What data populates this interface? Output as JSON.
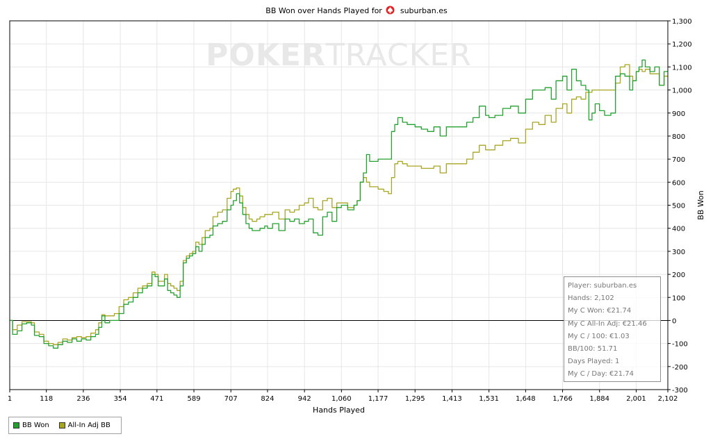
{
  "title": {
    "text": "BB Won over Hands Played for",
    "player": "suburban.es",
    "icon": "pokerstars-spade-icon"
  },
  "colors": {
    "bb_won": "#22a12e",
    "allin_adj": "#a8a520",
    "zero_line": "#000000",
    "grid": "#e6e6e6",
    "watermark": "#e8e8e8"
  },
  "watermark": {
    "left": "POKER",
    "right": "TRACKER"
  },
  "stats": {
    "player": "Player: suburban.es",
    "hands": "Hands: 2,102",
    "won": "My C Won: €21.74",
    "allin_adj": "My C All-In Adj: €21.46",
    "per100": "My C / 100: €1.03",
    "bb100": "BB/100: 51.71",
    "days": "Days Played: 1",
    "per_day": "My C / Day: €21.74"
  },
  "chart_data": {
    "type": "line",
    "title": "BB Won over Hands Played for suburban.es",
    "xlabel": "Hands Played",
    "ylabel": "BB Won",
    "xlim": [
      1,
      2102
    ],
    "ylim": [
      -300,
      1300
    ],
    "x_ticks": [
      1,
      118,
      236,
      354,
      471,
      589,
      707,
      824,
      942,
      1060,
      1177,
      1295,
      1413,
      1531,
      1648,
      1766,
      1884,
      2001,
      2102
    ],
    "x_tick_labels": [
      "1",
      "118",
      "236",
      "354",
      "471",
      "589",
      "707",
      "824",
      "942",
      "1,060",
      "1,177",
      "1,295",
      "1,413",
      "1,531",
      "1,648",
      "1,766",
      "1,884",
      "2,001",
      "2,102"
    ],
    "y_ticks": [
      -300,
      -200,
      -100,
      0,
      100,
      200,
      300,
      400,
      500,
      600,
      700,
      800,
      900,
      1000,
      1100,
      1200,
      1300
    ],
    "y_tick_labels": [
      "-300",
      "-200",
      "-100",
      "0",
      "100",
      "200",
      "300",
      "400",
      "500",
      "600",
      "700",
      "800",
      "900",
      "1,000",
      "1,100",
      "1,200",
      "1,300"
    ],
    "grid": true,
    "legend_position": "bottom-left",
    "series": [
      {
        "name": "BB Won",
        "points": [
          [
            1,
            0
          ],
          [
            10,
            -60
          ],
          [
            25,
            -45
          ],
          [
            40,
            -15
          ],
          [
            55,
            -10
          ],
          [
            70,
            -20
          ],
          [
            80,
            -65
          ],
          [
            95,
            -70
          ],
          [
            110,
            -100
          ],
          [
            125,
            -110
          ],
          [
            140,
            -120
          ],
          [
            155,
            -105
          ],
          [
            170,
            -90
          ],
          [
            185,
            -95
          ],
          [
            200,
            -80
          ],
          [
            215,
            -90
          ],
          [
            230,
            -80
          ],
          [
            245,
            -85
          ],
          [
            260,
            -70
          ],
          [
            275,
            -60
          ],
          [
            285,
            -30
          ],
          [
            295,
            20
          ],
          [
            305,
            -10
          ],
          [
            320,
            0
          ],
          [
            335,
            0
          ],
          [
            350,
            30
          ],
          [
            365,
            70
          ],
          [
            380,
            80
          ],
          [
            395,
            100
          ],
          [
            410,
            120
          ],
          [
            425,
            140
          ],
          [
            440,
            150
          ],
          [
            455,
            200
          ],
          [
            465,
            190
          ],
          [
            475,
            150
          ],
          [
            485,
            150
          ],
          [
            495,
            180
          ],
          [
            505,
            130
          ],
          [
            515,
            120
          ],
          [
            525,
            110
          ],
          [
            535,
            100
          ],
          [
            545,
            150
          ],
          [
            555,
            250
          ],
          [
            565,
            270
          ],
          [
            575,
            280
          ],
          [
            585,
            290
          ],
          [
            595,
            320
          ],
          [
            605,
            300
          ],
          [
            615,
            330
          ],
          [
            625,
            360
          ],
          [
            640,
            370
          ],
          [
            650,
            410
          ],
          [
            665,
            420
          ],
          [
            680,
            430
          ],
          [
            695,
            480
          ],
          [
            707,
            500
          ],
          [
            715,
            520
          ],
          [
            725,
            550
          ],
          [
            735,
            510
          ],
          [
            745,
            460
          ],
          [
            755,
            420
          ],
          [
            765,
            400
          ],
          [
            775,
            390
          ],
          [
            790,
            390
          ],
          [
            800,
            400
          ],
          [
            815,
            410
          ],
          [
            824,
            400
          ],
          [
            840,
            420
          ],
          [
            860,
            390
          ],
          [
            880,
            440
          ],
          [
            895,
            430
          ],
          [
            910,
            440
          ],
          [
            925,
            420
          ],
          [
            942,
            430
          ],
          [
            955,
            440
          ],
          [
            970,
            380
          ],
          [
            985,
            370
          ],
          [
            1000,
            450
          ],
          [
            1015,
            470
          ],
          [
            1030,
            430
          ],
          [
            1045,
            490
          ],
          [
            1060,
            500
          ],
          [
            1080,
            480
          ],
          [
            1100,
            500
          ],
          [
            1110,
            520
          ],
          [
            1120,
            600
          ],
          [
            1130,
            640
          ],
          [
            1140,
            720
          ],
          [
            1150,
            690
          ],
          [
            1165,
            690
          ],
          [
            1177,
            700
          ],
          [
            1195,
            700
          ],
          [
            1210,
            700
          ],
          [
            1220,
            820
          ],
          [
            1230,
            850
          ],
          [
            1240,
            880
          ],
          [
            1255,
            860
          ],
          [
            1270,
            850
          ],
          [
            1295,
            840
          ],
          [
            1315,
            830
          ],
          [
            1335,
            820
          ],
          [
            1355,
            840
          ],
          [
            1375,
            800
          ],
          [
            1395,
            840
          ],
          [
            1413,
            840
          ],
          [
            1440,
            840
          ],
          [
            1460,
            860
          ],
          [
            1480,
            880
          ],
          [
            1500,
            930
          ],
          [
            1520,
            890
          ],
          [
            1531,
            880
          ],
          [
            1550,
            890
          ],
          [
            1575,
            920
          ],
          [
            1600,
            930
          ],
          [
            1625,
            900
          ],
          [
            1648,
            960
          ],
          [
            1670,
            1000
          ],
          [
            1690,
            1000
          ],
          [
            1710,
            1010
          ],
          [
            1730,
            960
          ],
          [
            1745,
            1040
          ],
          [
            1766,
            1060
          ],
          [
            1780,
            1000
          ],
          [
            1795,
            1090
          ],
          [
            1810,
            1040
          ],
          [
            1825,
            1020
          ],
          [
            1840,
            1000
          ],
          [
            1850,
            870
          ],
          [
            1860,
            900
          ],
          [
            1870,
            940
          ],
          [
            1884,
            910
          ],
          [
            1900,
            890
          ],
          [
            1920,
            900
          ],
          [
            1935,
            1060
          ],
          [
            1950,
            1070
          ],
          [
            1965,
            1060
          ],
          [
            1980,
            1000
          ],
          [
            1990,
            1040
          ],
          [
            2001,
            1080
          ],
          [
            2010,
            1100
          ],
          [
            2020,
            1130
          ],
          [
            2030,
            1100
          ],
          [
            2045,
            1080
          ],
          [
            2060,
            1100
          ],
          [
            2075,
            1020
          ],
          [
            2090,
            1080
          ],
          [
            2102,
            1080
          ]
        ]
      },
      {
        "name": "All-In Adj BB",
        "points": [
          [
            1,
            0
          ],
          [
            10,
            -40
          ],
          [
            25,
            -20
          ],
          [
            40,
            -5
          ],
          [
            55,
            -5
          ],
          [
            70,
            -10
          ],
          [
            80,
            -50
          ],
          [
            95,
            -60
          ],
          [
            110,
            -90
          ],
          [
            125,
            -100
          ],
          [
            140,
            -105
          ],
          [
            155,
            -95
          ],
          [
            170,
            -80
          ],
          [
            185,
            -85
          ],
          [
            200,
            -75
          ],
          [
            215,
            -70
          ],
          [
            230,
            -75
          ],
          [
            245,
            -70
          ],
          [
            260,
            -55
          ],
          [
            275,
            -40
          ],
          [
            285,
            -10
          ],
          [
            295,
            25
          ],
          [
            305,
            20
          ],
          [
            320,
            20
          ],
          [
            335,
            30
          ],
          [
            350,
            60
          ],
          [
            365,
            90
          ],
          [
            380,
            100
          ],
          [
            395,
            120
          ],
          [
            410,
            140
          ],
          [
            425,
            150
          ],
          [
            440,
            160
          ],
          [
            455,
            210
          ],
          [
            465,
            200
          ],
          [
            475,
            170
          ],
          [
            485,
            170
          ],
          [
            495,
            200
          ],
          [
            505,
            160
          ],
          [
            515,
            150
          ],
          [
            525,
            140
          ],
          [
            535,
            130
          ],
          [
            545,
            170
          ],
          [
            555,
            260
          ],
          [
            565,
            280
          ],
          [
            575,
            290
          ],
          [
            585,
            300
          ],
          [
            595,
            340
          ],
          [
            605,
            330
          ],
          [
            615,
            360
          ],
          [
            625,
            390
          ],
          [
            640,
            400
          ],
          [
            650,
            450
          ],
          [
            665,
            470
          ],
          [
            680,
            480
          ],
          [
            695,
            530
          ],
          [
            707,
            560
          ],
          [
            715,
            570
          ],
          [
            725,
            575
          ],
          [
            735,
            540
          ],
          [
            745,
            490
          ],
          [
            755,
            460
          ],
          [
            765,
            440
          ],
          [
            775,
            430
          ],
          [
            790,
            440
          ],
          [
            800,
            450
          ],
          [
            815,
            460
          ],
          [
            824,
            460
          ],
          [
            840,
            470
          ],
          [
            860,
            440
          ],
          [
            880,
            480
          ],
          [
            895,
            470
          ],
          [
            910,
            480
          ],
          [
            925,
            500
          ],
          [
            942,
            510
          ],
          [
            955,
            530
          ],
          [
            970,
            490
          ],
          [
            985,
            480
          ],
          [
            1000,
            520
          ],
          [
            1015,
            530
          ],
          [
            1030,
            490
          ],
          [
            1045,
            510
          ],
          [
            1060,
            510
          ],
          [
            1080,
            490
          ],
          [
            1100,
            500
          ],
          [
            1110,
            520
          ],
          [
            1120,
            600
          ],
          [
            1130,
            620
          ],
          [
            1140,
            600
          ],
          [
            1150,
            580
          ],
          [
            1165,
            580
          ],
          [
            1177,
            570
          ],
          [
            1195,
            560
          ],
          [
            1210,
            550
          ],
          [
            1220,
            620
          ],
          [
            1230,
            680
          ],
          [
            1240,
            690
          ],
          [
            1255,
            680
          ],
          [
            1270,
            670
          ],
          [
            1295,
            670
          ],
          [
            1315,
            660
          ],
          [
            1335,
            660
          ],
          [
            1355,
            670
          ],
          [
            1375,
            640
          ],
          [
            1395,
            680
          ],
          [
            1413,
            680
          ],
          [
            1440,
            680
          ],
          [
            1460,
            700
          ],
          [
            1480,
            730
          ],
          [
            1500,
            760
          ],
          [
            1520,
            740
          ],
          [
            1531,
            740
          ],
          [
            1550,
            760
          ],
          [
            1575,
            780
          ],
          [
            1600,
            790
          ],
          [
            1625,
            770
          ],
          [
            1648,
            830
          ],
          [
            1670,
            860
          ],
          [
            1690,
            850
          ],
          [
            1710,
            890
          ],
          [
            1730,
            860
          ],
          [
            1745,
            920
          ],
          [
            1766,
            940
          ],
          [
            1780,
            900
          ],
          [
            1795,
            960
          ],
          [
            1810,
            970
          ],
          [
            1825,
            960
          ],
          [
            1840,
            990
          ],
          [
            1850,
            990
          ],
          [
            1860,
            1000
          ],
          [
            1870,
            1000
          ],
          [
            1884,
            1000
          ],
          [
            1900,
            1000
          ],
          [
            1920,
            1000
          ],
          [
            1935,
            1030
          ],
          [
            1950,
            1100
          ],
          [
            1965,
            1110
          ],
          [
            1980,
            1060
          ],
          [
            1990,
            1040
          ],
          [
            2001,
            1080
          ],
          [
            2010,
            1090
          ],
          [
            2020,
            1080
          ],
          [
            2030,
            1090
          ],
          [
            2045,
            1070
          ],
          [
            2060,
            1070
          ],
          [
            2075,
            1020
          ],
          [
            2090,
            1060
          ],
          [
            2102,
            1060
          ]
        ]
      }
    ]
  }
}
